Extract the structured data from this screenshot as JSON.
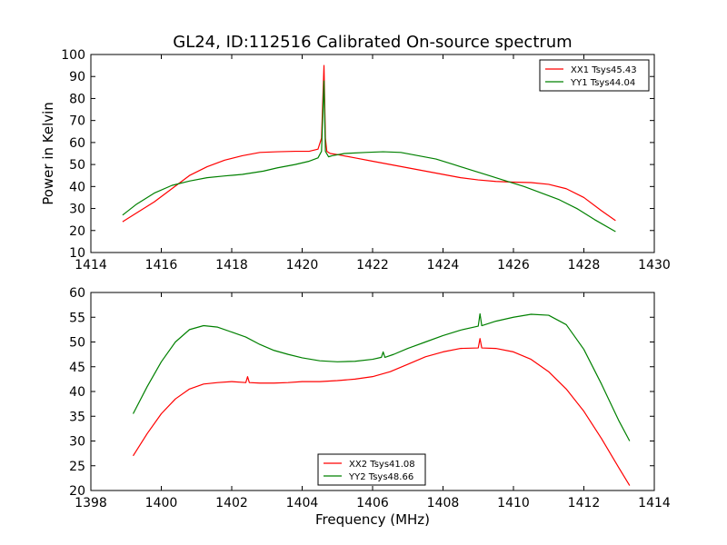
{
  "chart_data": [
    {
      "type": "line",
      "title": "GL24, ID:112516 Calibrated On-source spectrum",
      "xlabel": "",
      "ylabel": "Power in Kelvin",
      "xlim": [
        1414,
        1430
      ],
      "ylim": [
        10,
        100
      ],
      "xticks": [
        "1414",
        "1416",
        "1418",
        "1420",
        "1422",
        "1424",
        "1426",
        "1428",
        "1430"
      ],
      "yticks": [
        "10",
        "20",
        "30",
        "40",
        "50",
        "60",
        "70",
        "80",
        "90",
        "100"
      ],
      "legend_position": "top-right",
      "grid": false,
      "series": [
        {
          "name": "XX1 Tsys45.43",
          "color": "#ff0000",
          "x": [
            1414.9,
            1415.3,
            1415.8,
            1416.3,
            1416.8,
            1417.3,
            1417.8,
            1418.3,
            1418.8,
            1419.3,
            1419.8,
            1420.2,
            1420.45,
            1420.55,
            1420.62,
            1420.66,
            1420.7,
            1420.8,
            1421.0,
            1421.5,
            1422.0,
            1422.5,
            1423.0,
            1423.5,
            1424.0,
            1424.5,
            1425.0,
            1425.5,
            1426.0,
            1426.5,
            1427.0,
            1427.5,
            1428.0,
            1428.5,
            1428.9
          ],
          "y": [
            24,
            28,
            33,
            39,
            45,
            49,
            52,
            54,
            55.5,
            55.8,
            56,
            56,
            57,
            62,
            95,
            62,
            56,
            55,
            54.5,
            53,
            51.5,
            50,
            48.5,
            47,
            45.5,
            44,
            43,
            42.3,
            42,
            41.8,
            41,
            39,
            35,
            29,
            24.5
          ]
        },
        {
          "name": "YY1 Tsys44.04",
          "color": "#008000",
          "x": [
            1414.9,
            1415.3,
            1415.8,
            1416.3,
            1416.8,
            1417.3,
            1417.8,
            1418.3,
            1418.9,
            1419.3,
            1419.8,
            1420.2,
            1420.45,
            1420.55,
            1420.62,
            1420.66,
            1420.75,
            1420.85,
            1421.2,
            1421.8,
            1422.3,
            1422.8,
            1423.3,
            1423.8,
            1424.3,
            1424.8,
            1425.3,
            1425.8,
            1426.3,
            1426.8,
            1427.3,
            1427.8,
            1428.3,
            1428.9
          ],
          "y": [
            27,
            32,
            37,
            40.5,
            42.5,
            44,
            44.8,
            45.5,
            47,
            48.5,
            50,
            51.5,
            53,
            56,
            88,
            56,
            53.5,
            54,
            55,
            55.5,
            55.8,
            55.5,
            54,
            52.5,
            50,
            47.5,
            45,
            42.5,
            40,
            37,
            34,
            30,
            25,
            19.5
          ]
        }
      ]
    },
    {
      "type": "line",
      "title": "",
      "xlabel": "Frequency (MHz)",
      "ylabel": "",
      "xlim": [
        1398,
        1414
      ],
      "ylim": [
        20,
        60
      ],
      "xticks": [
        "1398",
        "1400",
        "1402",
        "1404",
        "1406",
        "1408",
        "1410",
        "1412",
        "1414"
      ],
      "yticks": [
        "20",
        "25",
        "30",
        "35",
        "40",
        "45",
        "50",
        "55",
        "60"
      ],
      "legend_position": "bottom-center",
      "grid": false,
      "series": [
        {
          "name": "XX2 Tsys41.08",
          "color": "#ff0000",
          "x": [
            1399.2,
            1399.6,
            1400.0,
            1400.4,
            1400.8,
            1401.2,
            1401.6,
            1402.0,
            1402.4,
            1402.45,
            1402.5,
            1402.8,
            1403.2,
            1403.6,
            1404.0,
            1404.5,
            1405.0,
            1405.5,
            1406.0,
            1406.5,
            1407.0,
            1407.5,
            1408.0,
            1408.5,
            1409.0,
            1409.05,
            1409.1,
            1409.5,
            1410.0,
            1410.5,
            1411.0,
            1411.5,
            1412.0,
            1412.5,
            1413.0,
            1413.3
          ],
          "y": [
            27,
            31.5,
            35.5,
            38.5,
            40.5,
            41.5,
            41.8,
            42,
            41.8,
            43,
            41.8,
            41.7,
            41.7,
            41.8,
            42,
            42,
            42.2,
            42.5,
            43,
            44,
            45.5,
            47,
            48,
            48.7,
            48.8,
            50.7,
            48.8,
            48.7,
            48,
            46.5,
            44,
            40.5,
            36,
            30.5,
            24.5,
            21
          ]
        },
        {
          "name": "YY2 Tsys48.66",
          "color": "#008000",
          "x": [
            1399.2,
            1399.6,
            1400.0,
            1400.4,
            1400.8,
            1401.2,
            1401.6,
            1402.0,
            1402.4,
            1402.8,
            1403.2,
            1403.6,
            1404.0,
            1404.5,
            1405.0,
            1405.5,
            1406.0,
            1406.25,
            1406.3,
            1406.35,
            1406.6,
            1407.0,
            1407.5,
            1408.0,
            1408.5,
            1409.0,
            1409.05,
            1409.1,
            1409.5,
            1410.0,
            1410.5,
            1411.0,
            1411.5,
            1412.0,
            1412.5,
            1413.0,
            1413.3
          ],
          "y": [
            35.5,
            41,
            46,
            50,
            52.5,
            53.3,
            53,
            52,
            51,
            49.5,
            48.3,
            47.5,
            46.8,
            46.2,
            46,
            46.1,
            46.5,
            46.9,
            48,
            46.9,
            47.5,
            48.7,
            50,
            51.3,
            52.4,
            53.2,
            55.7,
            53.3,
            54.2,
            55,
            55.6,
            55.4,
            53.5,
            48.5,
            41.5,
            34,
            30
          ]
        }
      ]
    }
  ]
}
